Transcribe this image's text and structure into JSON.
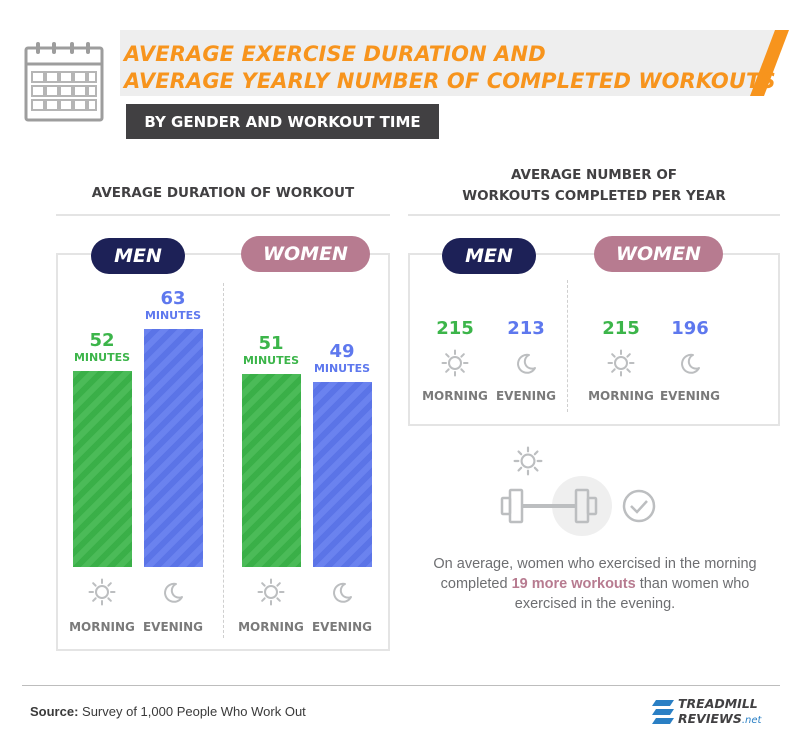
{
  "header": {
    "title_line_1": "AVERAGE EXERCISE DURATION AND",
    "title_line_2": "AVERAGE YEARLY NUMBER OF COMPLETED WORKOUTS",
    "subtitle": "BY GENDER AND WORKOUT TIME"
  },
  "colors": {
    "accent_orange": "#f7941d",
    "men_navy": "#1d2157",
    "women_pink": "#b77b90",
    "morning_green": "#3cb54a",
    "evening_blue": "#5e78ee",
    "dark_gray": "#414042"
  },
  "icons": {
    "header": "calendar-icon",
    "morning": "sun-icon",
    "evening": "moon-icon",
    "callout": [
      "sun-icon",
      "dumbbell-icon",
      "check-circle-icon"
    ]
  },
  "duration_section": {
    "heading": "AVERAGE DURATION OF WORKOUT"
  },
  "workouts_section": {
    "heading_line_1": "AVERAGE NUMBER OF",
    "heading_line_2": "WORKOUTS COMPLETED PER YEAR"
  },
  "labels": {
    "men": "MEN",
    "women": "WOMEN",
    "morning": "MORNING",
    "evening": "EVENING",
    "minutes": "MINUTES"
  },
  "chart_data": [
    {
      "type": "bar",
      "title": "AVERAGE DURATION OF WORKOUT",
      "groups": [
        "MEN",
        "WOMEN"
      ],
      "categories": [
        "MORNING",
        "EVENING"
      ],
      "unit": "MINUTES",
      "series": [
        {
          "name": "MEN",
          "values": [
            52,
            63
          ]
        },
        {
          "name": "WOMEN",
          "values": [
            51,
            49
          ]
        }
      ],
      "value_labels": {
        "men_morning": "52",
        "men_evening": "63",
        "women_morning": "51",
        "women_evening": "49"
      },
      "ylim": [
        0,
        63
      ],
      "grid": false
    },
    {
      "type": "table",
      "title_line_1": "AVERAGE NUMBER OF",
      "title_line_2": "WORKOUTS COMPLETED PER YEAR",
      "groups": [
        "MEN",
        "WOMEN"
      ],
      "categories": [
        "MORNING",
        "EVENING"
      ],
      "series": [
        {
          "name": "MEN",
          "values": [
            215,
            213
          ]
        },
        {
          "name": "WOMEN",
          "values": [
            215,
            196
          ]
        }
      ],
      "value_labels": {
        "men_morning": "215",
        "men_evening": "213",
        "women_morning": "215",
        "women_evening": "196"
      }
    }
  ],
  "callout": {
    "text_before": "On average, women who exercised in the morning completed",
    "highlight": "19 more workouts",
    "text_after": "than women who exercised in the evening."
  },
  "footer": {
    "source_label": "Source:",
    "source_text": "Survey of 1,000 People Who Work Out",
    "logo_line_1": "TREADMILL",
    "logo_line_2": "REVIEWS",
    "logo_suffix": ".net"
  }
}
